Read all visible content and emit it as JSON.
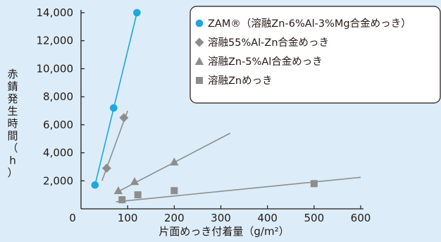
{
  "chart_data": {
    "type": "scatter",
    "xlabel": "片面めっき付着量（g/m²）",
    "ylabel": "赤錆発生時間（h）",
    "xlim": [
      0,
      600
    ],
    "ylim": [
      0,
      14000
    ],
    "x_ticks": [
      "0",
      "100",
      "200",
      "300",
      "400",
      "500",
      "600"
    ],
    "y_ticks": [
      "2,000",
      "4,000",
      "6,000",
      "8,000",
      "10,000",
      "12,000",
      "14,000"
    ],
    "grid": false,
    "legend_position": "top-right",
    "series": [
      {
        "name": "ZAM®（溶融Zn-6%Al-3%Mg合金めっき）",
        "marker": "circle",
        "color": "#1ea6dd",
        "line_color": "#1ea6dd",
        "points": [
          [
            30,
            1700
          ],
          [
            70,
            7200
          ],
          [
            120,
            14000
          ]
        ],
        "trend": [
          [
            30,
            1700
          ],
          [
            120,
            14000
          ]
        ]
      },
      {
        "name": "溶融55%Al-Zn合金めっき",
        "marker": "diamond",
        "color": "#8d8d8d",
        "line_color": "#8d8d8d",
        "points": [
          [
            55,
            2900
          ],
          [
            92,
            6500
          ]
        ],
        "trend": [
          [
            45,
            2000
          ],
          [
            100,
            7000
          ]
        ]
      },
      {
        "name": "溶融Zn-5%Al合金めっき",
        "marker": "triangle",
        "color": "#8d8d8d",
        "line_color": "#8d8d8d",
        "points": [
          [
            80,
            1300
          ],
          [
            115,
            1950
          ],
          [
            200,
            3350
          ]
        ],
        "trend": [
          [
            72,
            1100
          ],
          [
            320,
            5400
          ]
        ]
      },
      {
        "name": "溶融Znめっき",
        "marker": "square",
        "color": "#8d8d8d",
        "line_color": "#8d8d8d",
        "points": [
          [
            88,
            650
          ],
          [
            122,
            1000
          ],
          [
            200,
            1300
          ],
          [
            500,
            1800
          ]
        ],
        "trend": [
          [
            75,
            500
          ],
          [
            600,
            2250
          ]
        ]
      }
    ]
  }
}
